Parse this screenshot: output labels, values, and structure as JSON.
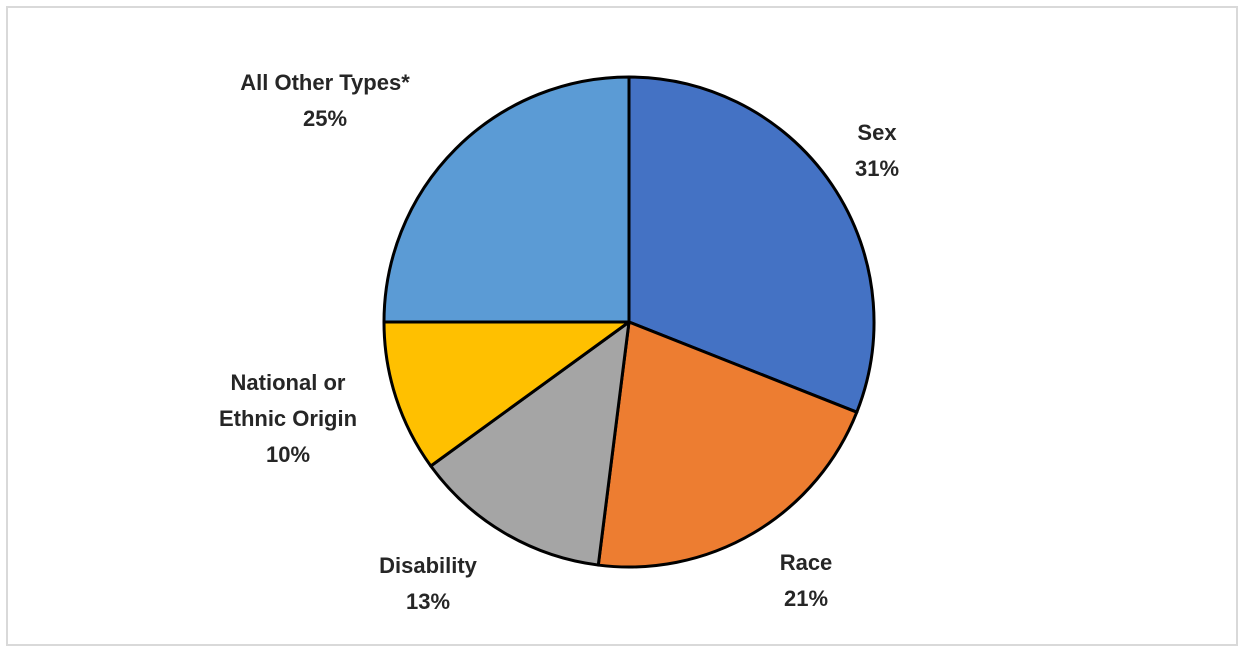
{
  "chart_data": {
    "type": "pie",
    "title": "",
    "slices": [
      {
        "label": [
          "Sex"
        ],
        "value": 31,
        "value_label": "31%",
        "color": "#4472C4"
      },
      {
        "label": [
          "Race"
        ],
        "value": 21,
        "value_label": "21%",
        "color": "#ED7D31"
      },
      {
        "label": [
          "Disability"
        ],
        "value": 13,
        "value_label": "13%",
        "color": "#A5A5A5"
      },
      {
        "label": [
          "National or",
          "Ethnic Origin"
        ],
        "value": 10,
        "value_label": "10%",
        "color": "#FFC000"
      },
      {
        "label": [
          "All Other Types*"
        ],
        "value": 25,
        "value_label": "25%",
        "color": "#5B9BD5"
      }
    ],
    "start_angle": "12 o'clock",
    "direction": "clockwise",
    "legend": "none",
    "border_color": "#000000"
  }
}
